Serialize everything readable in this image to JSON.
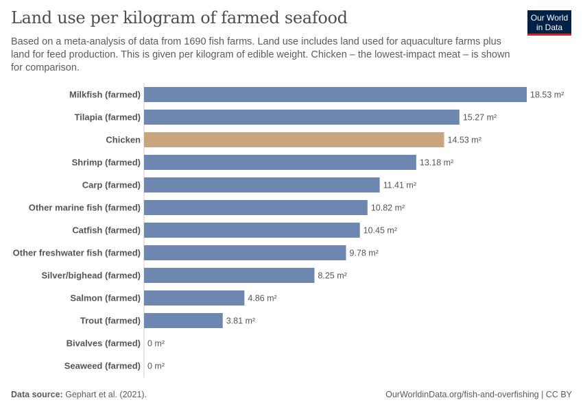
{
  "header": {
    "title": "Land use per kilogram of farmed seafood",
    "subtitle": "Based on a meta-analysis of data from 1690 fish farms. Land use includes land used for aquaculture farms plus land for feed production. This is given per kilogram of edible weight. Chicken – the lowest-impact meat – is shown for comparison.",
    "logo": "Our World in Data"
  },
  "footer": {
    "source_label": "Data source:",
    "source": "Gephart et al. (2021).",
    "url": "OurWorldinData.org/fish-and-overfishing | CC BY"
  },
  "colors": {
    "bar": "#6d87b0",
    "highlight": "#c8a57c"
  },
  "chart_data": {
    "type": "bar",
    "orientation": "horizontal",
    "unit": "m²",
    "categories": [
      "Milkfish (farmed)",
      "Tilapia (farmed)",
      "Chicken",
      "Shrimp (farmed)",
      "Carp (farmed)",
      "Other marine fish (farmed)",
      "Catfish (farmed)",
      "Other freshwater fish (farmed)",
      "Silver/bighead (farmed)",
      "Salmon (farmed)",
      "Trout (farmed)",
      "Bivalves (farmed)",
      "Seaweed (farmed)"
    ],
    "values": [
      18.53,
      15.27,
      14.53,
      13.18,
      11.41,
      10.82,
      10.45,
      9.78,
      8.25,
      4.86,
      3.81,
      0,
      0
    ],
    "highlighted": [
      "Chicken"
    ],
    "data_labels": [
      "18.53 m²",
      "15.27 m²",
      "14.53 m²",
      "13.18 m²",
      "11.41 m²",
      "10.82 m²",
      "10.45 m²",
      "9.78 m²",
      "8.25 m²",
      "4.86 m²",
      "3.81 m²",
      "0 m²",
      "0 m²"
    ]
  }
}
